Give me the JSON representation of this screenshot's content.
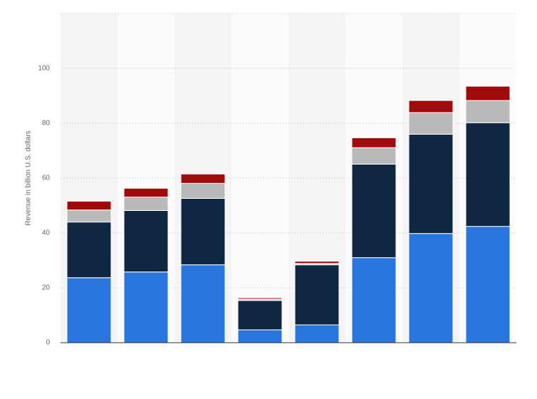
{
  "chart_data": {
    "type": "stacked_bar",
    "y_label": "Revenue in billion U.S. dollars",
    "categories": [
      null,
      null,
      null,
      null,
      null,
      null,
      null,
      null
    ],
    "series": [
      {
        "color": "#2876dd",
        "values": [
          23.7,
          25.8,
          28.4,
          4.7,
          6.5,
          31.0,
          39.8,
          42.4
        ]
      },
      {
        "color": "#0f2741",
        "values": [
          20.3,
          22.4,
          24.2,
          10.7,
          21.9,
          34.1,
          36.2,
          37.8
        ]
      },
      {
        "color": "#b9b9b9",
        "values": [
          4.4,
          4.9,
          5.5,
          0.5,
          0.5,
          6.0,
          7.9,
          8.1
        ]
      },
      {
        "color": "#a10a0a",
        "values": [
          3.2,
          3.2,
          3.4,
          0.5,
          0.8,
          3.6,
          4.4,
          5.2
        ]
      }
    ],
    "ylim": [
      0,
      120
    ],
    "yticks": [
      0,
      20,
      40,
      60,
      80,
      100
    ],
    "grid": true
  }
}
